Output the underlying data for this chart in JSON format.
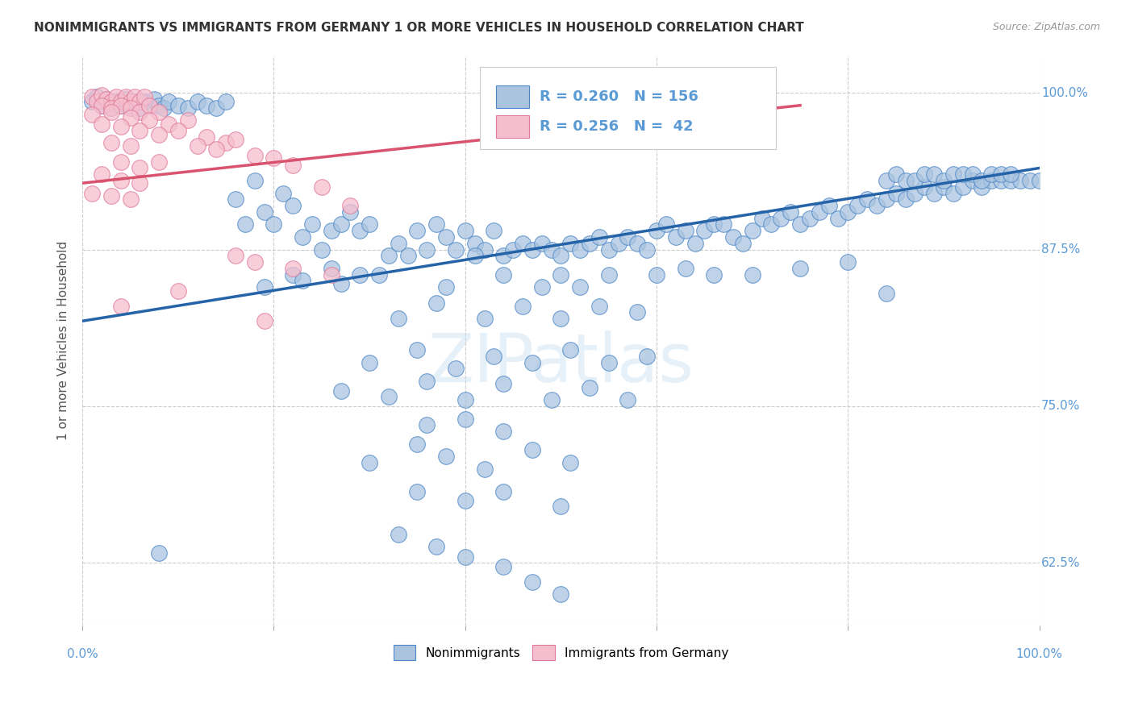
{
  "title": "NONIMMIGRANTS VS IMMIGRANTS FROM GERMANY 1 OR MORE VEHICLES IN HOUSEHOLD CORRELATION CHART",
  "source": "Source: ZipAtlas.com",
  "xlabel": "",
  "ylabel": "1 or more Vehicles in Household",
  "xlim": [
    0.0,
    1.0
  ],
  "ylim": [
    0.575,
    1.03
  ],
  "yticks": [
    0.625,
    0.75,
    0.875,
    1.0
  ],
  "ytick_labels": [
    "62.5%",
    "75.0%",
    "87.5%",
    "100.0%"
  ],
  "xticks": [
    0.0,
    0.2,
    0.4,
    0.6,
    0.8,
    1.0
  ],
  "xtick_labels": [
    "",
    "",
    "",
    "",
    "",
    ""
  ],
  "xtick_ends": [
    "0.0%",
    "100.0%"
  ],
  "blue_R": 0.26,
  "blue_N": 156,
  "pink_R": 0.256,
  "pink_N": 42,
  "blue_color": "#aac4df",
  "blue_edge_color": "#4a86c8",
  "blue_line_color": "#2563a8",
  "pink_color": "#f5bece",
  "pink_edge_color": "#e07898",
  "pink_line_color": "#d9526e",
  "background_color": "#ffffff",
  "grid_color": "#cccccc",
  "title_color": "#333333",
  "axis_label_color": "#5b9bd5",
  "watermark": "ZIPatlas",
  "legend_label_blue": "Nonimmigrants",
  "legend_label_pink": "Immigrants from Germany",
  "blue_scatter": [
    [
      0.01,
      0.993
    ],
    [
      0.015,
      0.997
    ],
    [
      0.02,
      0.99
    ],
    [
      0.025,
      0.995
    ],
    [
      0.03,
      0.988
    ],
    [
      0.035,
      0.993
    ],
    [
      0.04,
      0.99
    ],
    [
      0.045,
      0.995
    ],
    [
      0.05,
      0.99
    ],
    [
      0.055,
      0.993
    ],
    [
      0.06,
      0.988
    ],
    [
      0.065,
      0.993
    ],
    [
      0.07,
      0.99
    ],
    [
      0.075,
      0.995
    ],
    [
      0.08,
      0.99
    ],
    [
      0.085,
      0.988
    ],
    [
      0.09,
      0.993
    ],
    [
      0.1,
      0.99
    ],
    [
      0.11,
      0.988
    ],
    [
      0.12,
      0.993
    ],
    [
      0.13,
      0.99
    ],
    [
      0.14,
      0.988
    ],
    [
      0.15,
      0.993
    ],
    [
      0.16,
      0.915
    ],
    [
      0.17,
      0.895
    ],
    [
      0.18,
      0.93
    ],
    [
      0.19,
      0.905
    ],
    [
      0.2,
      0.895
    ],
    [
      0.21,
      0.92
    ],
    [
      0.22,
      0.91
    ],
    [
      0.23,
      0.885
    ],
    [
      0.24,
      0.895
    ],
    [
      0.25,
      0.875
    ],
    [
      0.26,
      0.89
    ],
    [
      0.27,
      0.895
    ],
    [
      0.28,
      0.905
    ],
    [
      0.29,
      0.89
    ],
    [
      0.3,
      0.895
    ],
    [
      0.31,
      0.855
    ],
    [
      0.32,
      0.87
    ],
    [
      0.33,
      0.88
    ],
    [
      0.34,
      0.87
    ],
    [
      0.35,
      0.89
    ],
    [
      0.36,
      0.875
    ],
    [
      0.37,
      0.895
    ],
    [
      0.38,
      0.885
    ],
    [
      0.39,
      0.875
    ],
    [
      0.4,
      0.89
    ],
    [
      0.41,
      0.88
    ],
    [
      0.42,
      0.875
    ],
    [
      0.43,
      0.89
    ],
    [
      0.44,
      0.87
    ],
    [
      0.45,
      0.875
    ],
    [
      0.46,
      0.88
    ],
    [
      0.47,
      0.875
    ],
    [
      0.48,
      0.88
    ],
    [
      0.49,
      0.875
    ],
    [
      0.5,
      0.87
    ],
    [
      0.51,
      0.88
    ],
    [
      0.52,
      0.875
    ],
    [
      0.53,
      0.88
    ],
    [
      0.54,
      0.885
    ],
    [
      0.55,
      0.875
    ],
    [
      0.56,
      0.88
    ],
    [
      0.57,
      0.885
    ],
    [
      0.58,
      0.88
    ],
    [
      0.59,
      0.875
    ],
    [
      0.6,
      0.89
    ],
    [
      0.61,
      0.895
    ],
    [
      0.62,
      0.885
    ],
    [
      0.63,
      0.89
    ],
    [
      0.64,
      0.88
    ],
    [
      0.65,
      0.89
    ],
    [
      0.66,
      0.895
    ],
    [
      0.67,
      0.895
    ],
    [
      0.68,
      0.885
    ],
    [
      0.69,
      0.88
    ],
    [
      0.7,
      0.89
    ],
    [
      0.71,
      0.9
    ],
    [
      0.72,
      0.895
    ],
    [
      0.73,
      0.9
    ],
    [
      0.74,
      0.905
    ],
    [
      0.75,
      0.895
    ],
    [
      0.76,
      0.9
    ],
    [
      0.77,
      0.905
    ],
    [
      0.78,
      0.91
    ],
    [
      0.79,
      0.9
    ],
    [
      0.8,
      0.905
    ],
    [
      0.81,
      0.91
    ],
    [
      0.82,
      0.915
    ],
    [
      0.83,
      0.91
    ],
    [
      0.84,
      0.915
    ],
    [
      0.85,
      0.92
    ],
    [
      0.86,
      0.915
    ],
    [
      0.87,
      0.92
    ],
    [
      0.88,
      0.925
    ],
    [
      0.89,
      0.92
    ],
    [
      0.9,
      0.925
    ],
    [
      0.91,
      0.92
    ],
    [
      0.92,
      0.925
    ],
    [
      0.93,
      0.93
    ],
    [
      0.94,
      0.925
    ],
    [
      0.95,
      0.93
    ],
    [
      0.96,
      0.93
    ],
    [
      0.97,
      0.93
    ],
    [
      0.98,
      0.93
    ],
    [
      0.99,
      0.93
    ],
    [
      1.0,
      0.93
    ],
    [
      0.84,
      0.93
    ],
    [
      0.85,
      0.935
    ],
    [
      0.86,
      0.93
    ],
    [
      0.87,
      0.93
    ],
    [
      0.88,
      0.935
    ],
    [
      0.89,
      0.935
    ],
    [
      0.9,
      0.93
    ],
    [
      0.91,
      0.935
    ],
    [
      0.92,
      0.935
    ],
    [
      0.93,
      0.935
    ],
    [
      0.94,
      0.93
    ],
    [
      0.95,
      0.935
    ],
    [
      0.96,
      0.935
    ],
    [
      0.97,
      0.935
    ],
    [
      0.22,
      0.855
    ],
    [
      0.26,
      0.86
    ],
    [
      0.29,
      0.855
    ],
    [
      0.38,
      0.845
    ],
    [
      0.41,
      0.87
    ],
    [
      0.44,
      0.855
    ],
    [
      0.48,
      0.845
    ],
    [
      0.5,
      0.855
    ],
    [
      0.52,
      0.845
    ],
    [
      0.55,
      0.855
    ],
    [
      0.6,
      0.855
    ],
    [
      0.63,
      0.86
    ],
    [
      0.66,
      0.855
    ],
    [
      0.7,
      0.855
    ],
    [
      0.75,
      0.86
    ],
    [
      0.19,
      0.845
    ],
    [
      0.23,
      0.85
    ],
    [
      0.27,
      0.848
    ],
    [
      0.33,
      0.82
    ],
    [
      0.37,
      0.832
    ],
    [
      0.42,
      0.82
    ],
    [
      0.46,
      0.83
    ],
    [
      0.5,
      0.82
    ],
    [
      0.54,
      0.83
    ],
    [
      0.58,
      0.825
    ],
    [
      0.3,
      0.785
    ],
    [
      0.35,
      0.795
    ],
    [
      0.39,
      0.78
    ],
    [
      0.43,
      0.79
    ],
    [
      0.47,
      0.785
    ],
    [
      0.51,
      0.795
    ],
    [
      0.55,
      0.785
    ],
    [
      0.59,
      0.79
    ],
    [
      0.27,
      0.762
    ],
    [
      0.32,
      0.758
    ],
    [
      0.36,
      0.77
    ],
    [
      0.4,
      0.755
    ],
    [
      0.44,
      0.768
    ],
    [
      0.49,
      0.755
    ],
    [
      0.53,
      0.765
    ],
    [
      0.57,
      0.755
    ],
    [
      0.36,
      0.735
    ],
    [
      0.4,
      0.74
    ],
    [
      0.44,
      0.73
    ],
    [
      0.3,
      0.705
    ],
    [
      0.35,
      0.72
    ],
    [
      0.38,
      0.71
    ],
    [
      0.42,
      0.7
    ],
    [
      0.47,
      0.715
    ],
    [
      0.51,
      0.705
    ],
    [
      0.35,
      0.682
    ],
    [
      0.4,
      0.675
    ],
    [
      0.44,
      0.682
    ],
    [
      0.5,
      0.67
    ],
    [
      0.08,
      0.633
    ],
    [
      0.33,
      0.648
    ],
    [
      0.37,
      0.638
    ],
    [
      0.4,
      0.63
    ],
    [
      0.44,
      0.622
    ],
    [
      0.47,
      0.61
    ],
    [
      0.5,
      0.6
    ],
    [
      0.8,
      0.865
    ],
    [
      0.84,
      0.84
    ]
  ],
  "pink_scatter": [
    [
      0.01,
      0.997
    ],
    [
      0.015,
      0.993
    ],
    [
      0.02,
      0.998
    ],
    [
      0.025,
      0.995
    ],
    [
      0.03,
      0.993
    ],
    [
      0.035,
      0.997
    ],
    [
      0.04,
      0.993
    ],
    [
      0.045,
      0.997
    ],
    [
      0.05,
      0.993
    ],
    [
      0.055,
      0.997
    ],
    [
      0.06,
      0.993
    ],
    [
      0.065,
      0.997
    ],
    [
      0.02,
      0.99
    ],
    [
      0.03,
      0.988
    ],
    [
      0.04,
      0.99
    ],
    [
      0.05,
      0.988
    ],
    [
      0.06,
      0.985
    ],
    [
      0.07,
      0.99
    ],
    [
      0.08,
      0.985
    ],
    [
      0.01,
      0.983
    ],
    [
      0.03,
      0.985
    ],
    [
      0.05,
      0.98
    ],
    [
      0.07,
      0.978
    ],
    [
      0.09,
      0.975
    ],
    [
      0.11,
      0.978
    ],
    [
      0.02,
      0.975
    ],
    [
      0.04,
      0.973
    ],
    [
      0.06,
      0.97
    ],
    [
      0.08,
      0.967
    ],
    [
      0.1,
      0.97
    ],
    [
      0.13,
      0.965
    ],
    [
      0.15,
      0.96
    ],
    [
      0.12,
      0.958
    ],
    [
      0.16,
      0.963
    ],
    [
      0.14,
      0.955
    ],
    [
      0.03,
      0.96
    ],
    [
      0.05,
      0.958
    ],
    [
      0.18,
      0.95
    ],
    [
      0.2,
      0.948
    ],
    [
      0.22,
      0.942
    ],
    [
      0.04,
      0.945
    ],
    [
      0.06,
      0.94
    ],
    [
      0.08,
      0.945
    ],
    [
      0.02,
      0.935
    ],
    [
      0.04,
      0.93
    ],
    [
      0.06,
      0.928
    ],
    [
      0.25,
      0.925
    ],
    [
      0.01,
      0.92
    ],
    [
      0.03,
      0.918
    ],
    [
      0.05,
      0.915
    ],
    [
      0.28,
      0.91
    ],
    [
      0.16,
      0.87
    ],
    [
      0.18,
      0.865
    ],
    [
      0.22,
      0.86
    ],
    [
      0.26,
      0.855
    ],
    [
      0.1,
      0.842
    ],
    [
      0.04,
      0.83
    ],
    [
      0.19,
      0.818
    ]
  ],
  "blue_line_x": [
    0.0,
    1.0
  ],
  "blue_line_y": [
    0.818,
    0.94
  ],
  "pink_line_x": [
    0.0,
    0.75
  ],
  "pink_line_y": [
    0.928,
    0.99
  ]
}
